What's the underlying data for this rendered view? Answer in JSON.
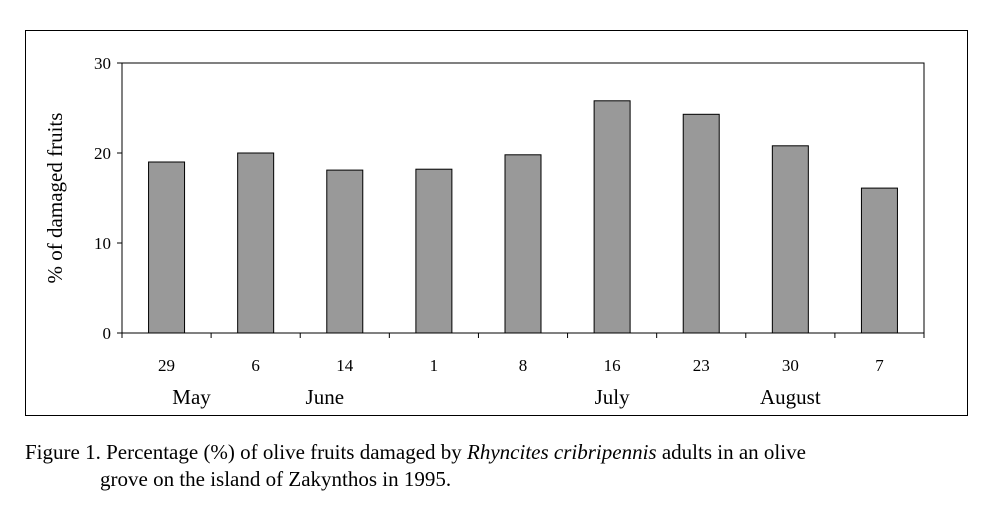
{
  "chart_data": {
    "type": "bar",
    "categories": [
      "29",
      "6",
      "14",
      "1",
      "8",
      "16",
      "23",
      "30",
      "7"
    ],
    "values": [
      19.0,
      20.0,
      18.1,
      18.2,
      19.8,
      25.8,
      24.3,
      20.8,
      16.1
    ],
    "month_groups": [
      {
        "label": "May",
        "at": "29"
      },
      {
        "label": "June",
        "at": "14"
      },
      {
        "label": "July",
        "at": "16"
      },
      {
        "label": "August",
        "at": "30"
      }
    ],
    "ylabel": "% of damaged fruits",
    "ylim": [
      0,
      30
    ],
    "yticks": [
      "0",
      "10",
      "20",
      "30"
    ],
    "bar_color": "#999999",
    "grid": false,
    "legend": "none"
  },
  "caption": {
    "prefix": "Figure 1. Percentage (%) of olive fruits damaged by ",
    "species": "Rhyncites cribripennis",
    "suffix": " adults in an olive",
    "line2": "grove on the island of Zakynthos in 1995."
  }
}
